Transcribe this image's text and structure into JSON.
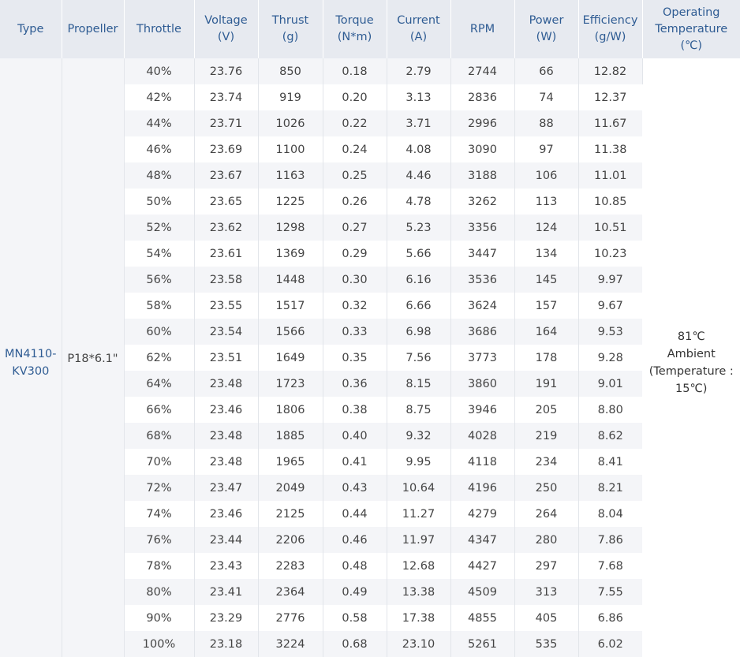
{
  "headers": {
    "type": [
      "Type"
    ],
    "propeller": [
      "Propeller"
    ],
    "throttle": [
      "Throttle"
    ],
    "voltage": [
      "Voltage",
      "(V)"
    ],
    "thrust": [
      "Thrust",
      "(g)"
    ],
    "torque": [
      "Torque",
      "(N*m)"
    ],
    "current": [
      "Current",
      "(A)"
    ],
    "rpm": [
      "RPM"
    ],
    "power": [
      "Power",
      "(W)"
    ],
    "efficiency": [
      "Efficiency",
      "(g/W)"
    ],
    "temperature": [
      "Operating",
      "Temperature",
      "(℃)"
    ]
  },
  "type_value": [
    "MN4110-",
    "KV300"
  ],
  "propeller_value": "P18*6.1\"",
  "temperature_value": [
    "81℃",
    "Ambient",
    "(Temperature :",
    "15℃)"
  ],
  "rows": [
    {
      "throttle": "40%",
      "voltage": "23.76",
      "thrust": "850",
      "torque": "0.18",
      "current": "2.79",
      "rpm": "2744",
      "power": "66",
      "efficiency": "12.82"
    },
    {
      "throttle": "42%",
      "voltage": "23.74",
      "thrust": "919",
      "torque": "0.20",
      "current": "3.13",
      "rpm": "2836",
      "power": "74",
      "efficiency": "12.37"
    },
    {
      "throttle": "44%",
      "voltage": "23.71",
      "thrust": "1026",
      "torque": "0.22",
      "current": "3.71",
      "rpm": "2996",
      "power": "88",
      "efficiency": "11.67"
    },
    {
      "throttle": "46%",
      "voltage": "23.69",
      "thrust": "1100",
      "torque": "0.24",
      "current": "4.08",
      "rpm": "3090",
      "power": "97",
      "efficiency": "11.38"
    },
    {
      "throttle": "48%",
      "voltage": "23.67",
      "thrust": "1163",
      "torque": "0.25",
      "current": "4.46",
      "rpm": "3188",
      "power": "106",
      "efficiency": "11.01"
    },
    {
      "throttle": "50%",
      "voltage": "23.65",
      "thrust": "1225",
      "torque": "0.26",
      "current": "4.78",
      "rpm": "3262",
      "power": "113",
      "efficiency": "10.85"
    },
    {
      "throttle": "52%",
      "voltage": "23.62",
      "thrust": "1298",
      "torque": "0.27",
      "current": "5.23",
      "rpm": "3356",
      "power": "124",
      "efficiency": "10.51"
    },
    {
      "throttle": "54%",
      "voltage": "23.61",
      "thrust": "1369",
      "torque": "0.29",
      "current": "5.66",
      "rpm": "3447",
      "power": "134",
      "efficiency": "10.23"
    },
    {
      "throttle": "56%",
      "voltage": "23.58",
      "thrust": "1448",
      "torque": "0.30",
      "current": "6.16",
      "rpm": "3536",
      "power": "145",
      "efficiency": "9.97"
    },
    {
      "throttle": "58%",
      "voltage": "23.55",
      "thrust": "1517",
      "torque": "0.32",
      "current": "6.66",
      "rpm": "3624",
      "power": "157",
      "efficiency": "9.67"
    },
    {
      "throttle": "60%",
      "voltage": "23.54",
      "thrust": "1566",
      "torque": "0.33",
      "current": "6.98",
      "rpm": "3686",
      "power": "164",
      "efficiency": "9.53"
    },
    {
      "throttle": "62%",
      "voltage": "23.51",
      "thrust": "1649",
      "torque": "0.35",
      "current": "7.56",
      "rpm": "3773",
      "power": "178",
      "efficiency": "9.28"
    },
    {
      "throttle": "64%",
      "voltage": "23.48",
      "thrust": "1723",
      "torque": "0.36",
      "current": "8.15",
      "rpm": "3860",
      "power": "191",
      "efficiency": "9.01"
    },
    {
      "throttle": "66%",
      "voltage": "23.46",
      "thrust": "1806",
      "torque": "0.38",
      "current": "8.75",
      "rpm": "3946",
      "power": "205",
      "efficiency": "8.80"
    },
    {
      "throttle": "68%",
      "voltage": "23.48",
      "thrust": "1885",
      "torque": "0.40",
      "current": "9.32",
      "rpm": "4028",
      "power": "219",
      "efficiency": "8.62"
    },
    {
      "throttle": "70%",
      "voltage": "23.48",
      "thrust": "1965",
      "torque": "0.41",
      "current": "9.95",
      "rpm": "4118",
      "power": "234",
      "efficiency": "8.41"
    },
    {
      "throttle": "72%",
      "voltage": "23.47",
      "thrust": "2049",
      "torque": "0.43",
      "current": "10.64",
      "rpm": "4196",
      "power": "250",
      "efficiency": "8.21"
    },
    {
      "throttle": "74%",
      "voltage": "23.46",
      "thrust": "2125",
      "torque": "0.44",
      "current": "11.27",
      "rpm": "4279",
      "power": "264",
      "efficiency": "8.04"
    },
    {
      "throttle": "76%",
      "voltage": "23.44",
      "thrust": "2206",
      "torque": "0.46",
      "current": "11.97",
      "rpm": "4347",
      "power": "280",
      "efficiency": "7.86"
    },
    {
      "throttle": "78%",
      "voltage": "23.43",
      "thrust": "2283",
      "torque": "0.48",
      "current": "12.68",
      "rpm": "4427",
      "power": "297",
      "efficiency": "7.68"
    },
    {
      "throttle": "80%",
      "voltage": "23.41",
      "thrust": "2364",
      "torque": "0.49",
      "current": "13.38",
      "rpm": "4509",
      "power": "313",
      "efficiency": "7.55"
    },
    {
      "throttle": "90%",
      "voltage": "23.29",
      "thrust": "2776",
      "torque": "0.58",
      "current": "17.38",
      "rpm": "4855",
      "power": "405",
      "efficiency": "6.86"
    },
    {
      "throttle": "100%",
      "voltage": "23.18",
      "thrust": "3224",
      "torque": "0.68",
      "current": "23.10",
      "rpm": "5261",
      "power": "535",
      "efficiency": "6.02"
    }
  ],
  "colors": {
    "header_bg": "#e7eaf0",
    "header_text": "#2f5c93",
    "stripe_bg": "#f4f5f8",
    "body_text": "#444444"
  }
}
